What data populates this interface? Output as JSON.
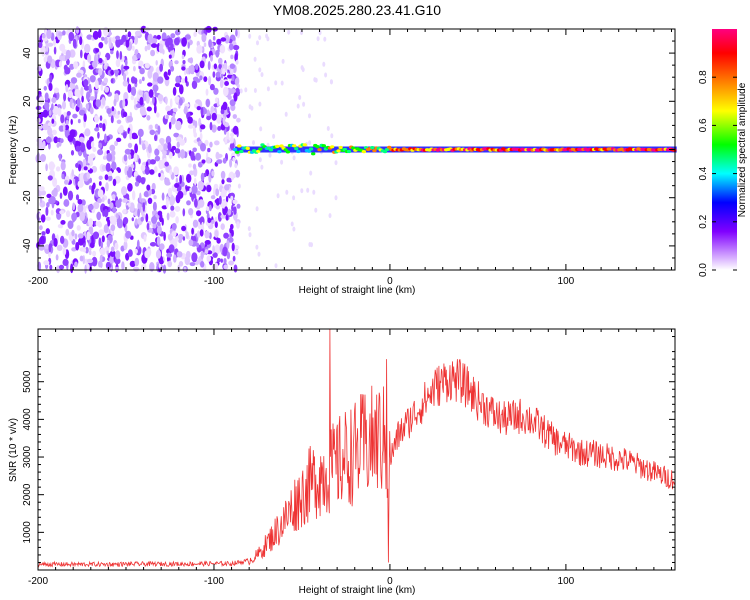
{
  "title": "YM08.2025.280.23.41.G10",
  "chart_data": [
    {
      "type": "heatmap",
      "title": "YM08.2025.280.23.41.G10",
      "xlabel": "Height of straight line (km)",
      "ylabel": "Frequency (Hz)",
      "xlim": [
        -200,
        162
      ],
      "ylim": [
        -50,
        50
      ],
      "x_ticks": [
        "-200",
        "-100",
        "0",
        "100"
      ],
      "x_tick_values": [
        -200,
        -100,
        0,
        100
      ],
      "y_ticks": [
        "-40",
        "-20",
        "0",
        "20",
        "40"
      ],
      "y_tick_values": [
        -40,
        -20,
        0,
        20,
        40
      ],
      "noise_region_x": [
        -200,
        -86
      ],
      "signal_band_hz": 0,
      "colorbar": {
        "label": "Normalized spectral amplitude",
        "range": [
          0,
          1
        ],
        "ticks": [
          "0.0",
          "0.2",
          "0.4",
          "0.6",
          "0.8"
        ],
        "tick_values": [
          0,
          0.2,
          0.4,
          0.6,
          0.8
        ],
        "colors": [
          "#ffffff",
          "#8000ff",
          "#0000ff",
          "#00ffff",
          "#00ff00",
          "#ffff00",
          "#ff8000",
          "#ff0000",
          "#ff0080"
        ]
      }
    },
    {
      "type": "line",
      "xlabel": "Height of straight line (km)",
      "ylabel": "SNR (10 * v/v)",
      "xlim": [
        -200,
        162
      ],
      "ylim": [
        0,
        6400
      ],
      "x_ticks": [
        "-200",
        "-100",
        "0",
        "100"
      ],
      "x_tick_values": [
        -200,
        -100,
        0,
        100
      ],
      "y_ticks": [
        "1000",
        "2000",
        "3000",
        "4000",
        "5000"
      ],
      "y_tick_values": [
        1000,
        2000,
        3000,
        4000,
        5000
      ],
      "color": "#ee3333",
      "series": [
        {
          "name": "SNR",
          "x": [
            -200,
            -180,
            -160,
            -140,
            -120,
            -100,
            -90,
            -80,
            -75,
            -70,
            -65,
            -60,
            -55,
            -50,
            -45,
            -40,
            -35,
            -30,
            -25,
            -20,
            -15,
            -10,
            -5,
            -2,
            -1,
            0,
            2,
            5,
            10,
            15,
            20,
            25,
            30,
            35,
            40,
            45,
            50,
            55,
            60,
            65,
            70,
            75,
            80,
            85,
            90,
            95,
            100,
            105,
            110,
            115,
            120,
            125,
            130,
            135,
            140,
            145,
            150,
            155,
            162
          ],
          "values": [
            150,
            150,
            150,
            160,
            160,
            170,
            170,
            250,
            400,
            700,
            1000,
            1300,
            1700,
            2000,
            2300,
            2500,
            2600,
            2800,
            3000,
            3100,
            3300,
            3400,
            3500,
            3300,
            2000,
            2900,
            3200,
            3600,
            3900,
            4200,
            4500,
            4800,
            5000,
            5100,
            5000,
            4800,
            4500,
            4300,
            4100,
            4000,
            4050,
            4100,
            4000,
            3800,
            3600,
            3400,
            3300,
            3200,
            3100,
            3100,
            3050,
            3000,
            2950,
            2900,
            2800,
            2700,
            2600,
            2500,
            2400
          ]
        }
      ]
    }
  ]
}
